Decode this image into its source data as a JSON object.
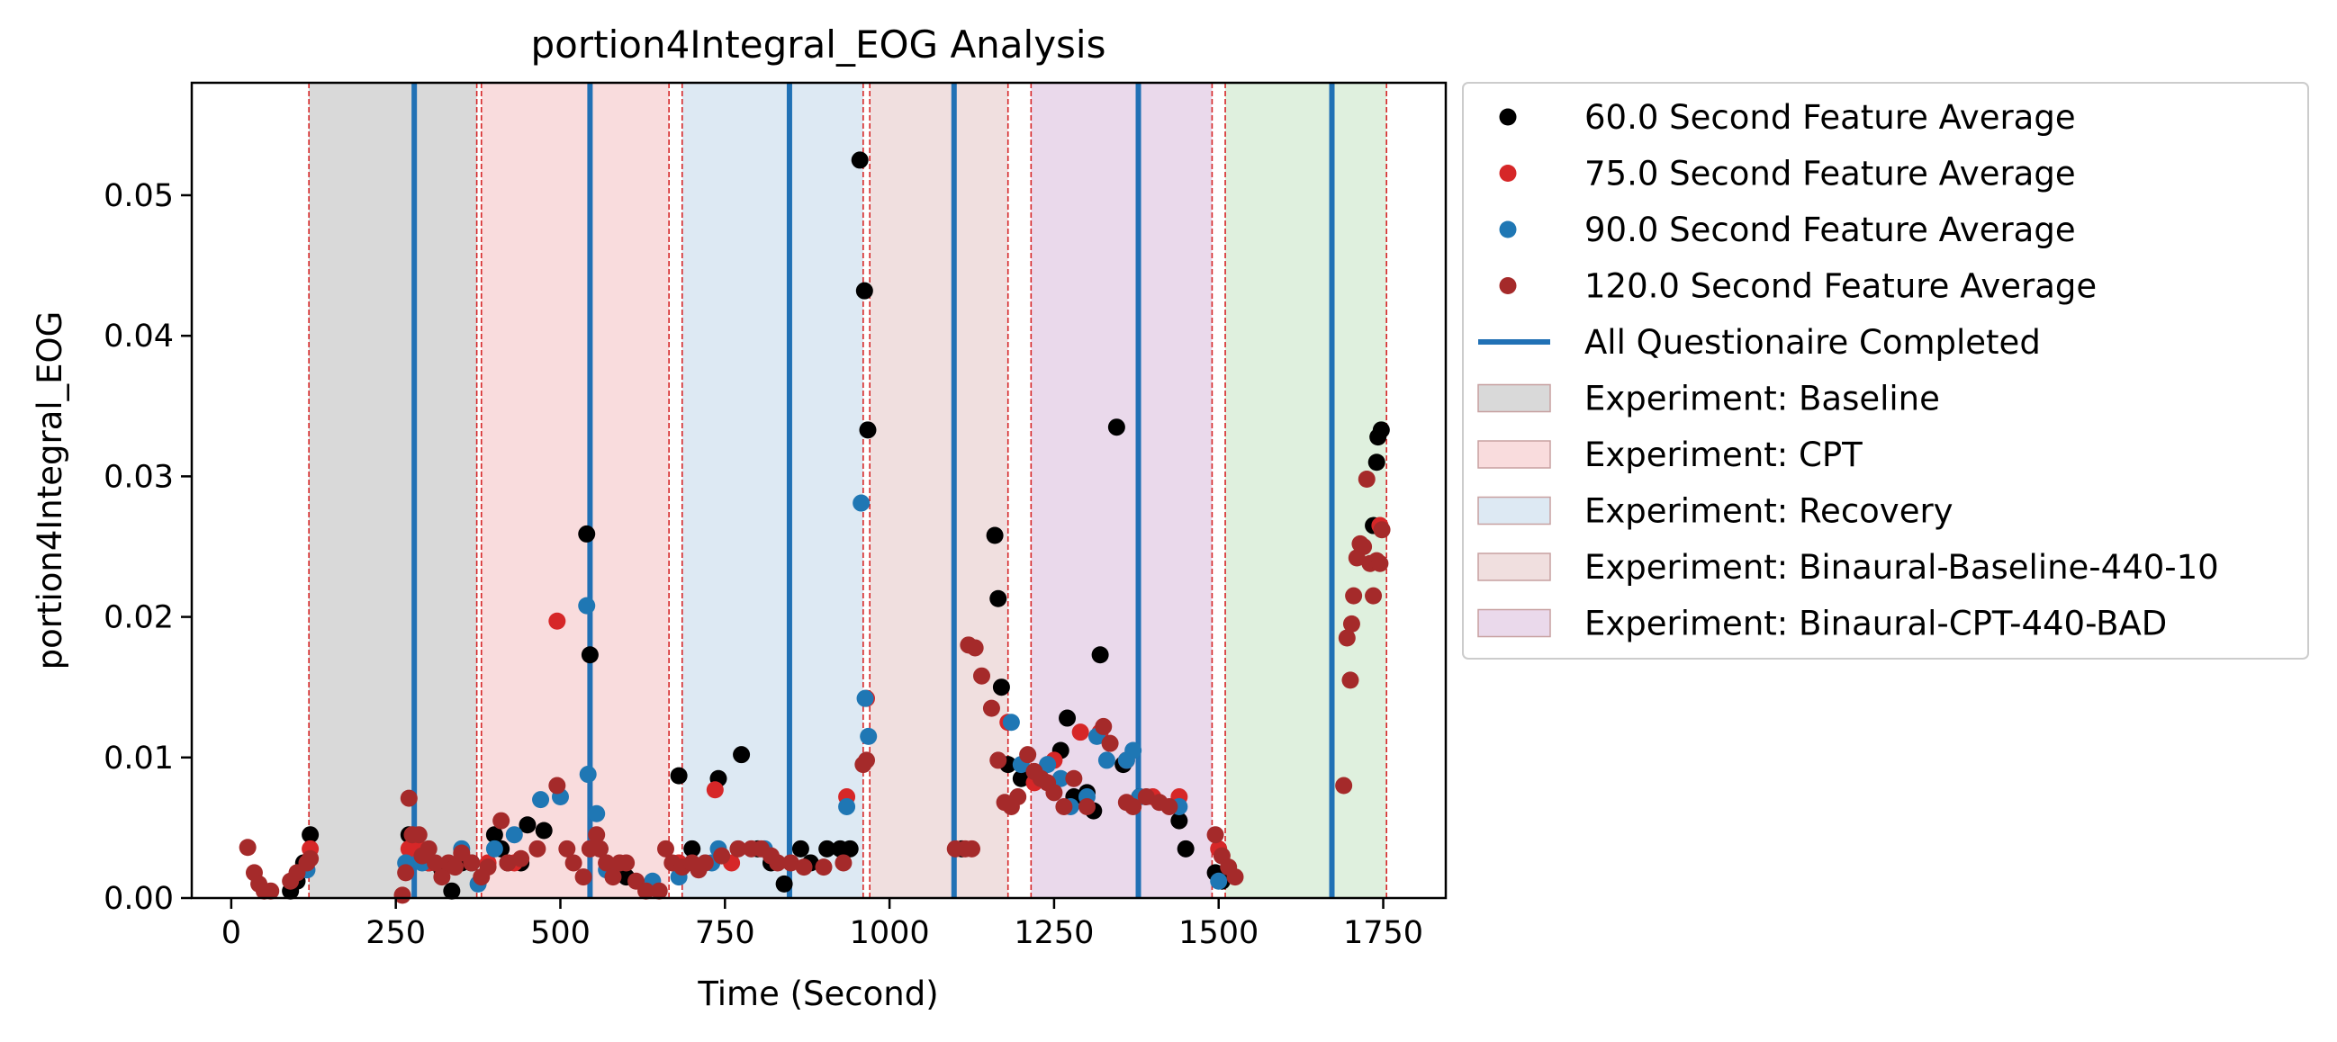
{
  "chart_data": {
    "type": "scatter",
    "title": "portion4Integral_EOG Analysis",
    "xlabel": "Time (Second)",
    "ylabel": "portion4Integral_EOG",
    "xlim": [
      -60,
      1845
    ],
    "ylim": [
      0,
      0.058
    ],
    "x_ticks": [
      0,
      250,
      500,
      750,
      1000,
      1250,
      1500,
      1750
    ],
    "y_ticks": [
      0.0,
      0.01,
      0.02,
      0.03,
      0.04,
      0.05
    ],
    "x_tick_labels": [
      "0",
      "250",
      "500",
      "750",
      "1000",
      "1250",
      "1500",
      "1750"
    ],
    "y_tick_labels": [
      "0.00",
      "0.01",
      "0.02",
      "0.03",
      "0.04",
      "0.05"
    ],
    "grid": false,
    "legend_position": "outside-right",
    "phases": [
      {
        "name": "Experiment: Baseline",
        "start": 118,
        "end": 373,
        "color": "#d9d9d9"
      },
      {
        "name": "Experiment: CPT",
        "start": 380,
        "end": 665,
        "color": "#f9dcdd"
      },
      {
        "name": "Experiment: Recovery",
        "start": 685,
        "end": 960,
        "color": "#dde9f3"
      },
      {
        "name": "Experiment: Binaural-Baseline-440-10",
        "start": 970,
        "end": 1180,
        "color": "#f0dfdf"
      },
      {
        "name": "Experiment: Binaural-CPT-440-BAD",
        "start": 1215,
        "end": 1490,
        "color": "#ead9eb"
      },
      {
        "name": "",
        "start": 1510,
        "end": 1755,
        "color": "#dff0de"
      }
    ],
    "questionnaire_times": [
      278,
      545,
      848,
      1098,
      1378,
      1672
    ],
    "questionnaire_label": "All Questionaire Completed",
    "questionnaire_color": "#2171b5",
    "series": [
      {
        "name": "60.0 Second Feature Average",
        "color": "#000000",
        "points": [
          [
            90,
            0.0005
          ],
          [
            100,
            0.0012
          ],
          [
            110,
            0.0025
          ],
          [
            120,
            0.0045
          ],
          [
            270,
            0.0045
          ],
          [
            285,
            0.0035
          ],
          [
            300,
            0.0025
          ],
          [
            320,
            0.002
          ],
          [
            335,
            0.0005
          ],
          [
            350,
            0.0025
          ],
          [
            365,
            0.0025
          ],
          [
            400,
            0.0045
          ],
          [
            410,
            0.0035
          ],
          [
            420,
            0.0025
          ],
          [
            440,
            0.0025
          ],
          [
            450,
            0.0052
          ],
          [
            475,
            0.0048
          ],
          [
            540,
            0.0259
          ],
          [
            545,
            0.0173
          ],
          [
            560,
            0.0035
          ],
          [
            600,
            0.0015
          ],
          [
            640,
            0.0008
          ],
          [
            680,
            0.0087
          ],
          [
            700,
            0.0035
          ],
          [
            740,
            0.0085
          ],
          [
            775,
            0.0102
          ],
          [
            800,
            0.0035
          ],
          [
            820,
            0.0025
          ],
          [
            840,
            0.001
          ],
          [
            865,
            0.0035
          ],
          [
            880,
            0.0025
          ],
          [
            905,
            0.0035
          ],
          [
            925,
            0.0035
          ],
          [
            940,
            0.0035
          ],
          [
            955,
            0.0525
          ],
          [
            962,
            0.0432
          ],
          [
            967,
            0.0333
          ],
          [
            1110,
            0.0035
          ],
          [
            1160,
            0.0258
          ],
          [
            1165,
            0.0213
          ],
          [
            1170,
            0.015
          ],
          [
            1180,
            0.0095
          ],
          [
            1200,
            0.0085
          ],
          [
            1230,
            0.0085
          ],
          [
            1260,
            0.0105
          ],
          [
            1270,
            0.0128
          ],
          [
            1280,
            0.0072
          ],
          [
            1300,
            0.0075
          ],
          [
            1310,
            0.0062
          ],
          [
            1320,
            0.0173
          ],
          [
            1345,
            0.0335
          ],
          [
            1355,
            0.0095
          ],
          [
            1380,
            0.0072
          ],
          [
            1440,
            0.0055
          ],
          [
            1450,
            0.0035
          ],
          [
            1495,
            0.0018
          ],
          [
            1505,
            0.0012
          ],
          [
            1735,
            0.0265
          ],
          [
            1740,
            0.031
          ],
          [
            1742,
            0.0328
          ],
          [
            1747,
            0.0333
          ]
        ]
      },
      {
        "name": "75.0 Second Feature Average",
        "color": "#d62728",
        "points": [
          [
            120,
            0.0035
          ],
          [
            270,
            0.0035
          ],
          [
            285,
            0.0035
          ],
          [
            300,
            0.0025
          ],
          [
            390,
            0.0025
          ],
          [
            430,
            0.0025
          ],
          [
            495,
            0.0197
          ],
          [
            545,
            0.0035
          ],
          [
            570,
            0.0025
          ],
          [
            680,
            0.0025
          ],
          [
            735,
            0.0077
          ],
          [
            760,
            0.0025
          ],
          [
            935,
            0.0072
          ],
          [
            965,
            0.0142
          ],
          [
            1180,
            0.0125
          ],
          [
            1220,
            0.0082
          ],
          [
            1250,
            0.0098
          ],
          [
            1290,
            0.0118
          ],
          [
            1320,
            0.0118
          ],
          [
            1360,
            0.0098
          ],
          [
            1400,
            0.0072
          ],
          [
            1440,
            0.0072
          ],
          [
            1500,
            0.0035
          ],
          [
            1745,
            0.0265
          ]
        ]
      },
      {
        "name": "90.0 Second Feature Average",
        "color": "#1f77b4",
        "points": [
          [
            115,
            0.002
          ],
          [
            265,
            0.0025
          ],
          [
            290,
            0.0025
          ],
          [
            350,
            0.0035
          ],
          [
            375,
            0.001
          ],
          [
            400,
            0.0035
          ],
          [
            430,
            0.0045
          ],
          [
            470,
            0.007
          ],
          [
            500,
            0.0072
          ],
          [
            540,
            0.0208
          ],
          [
            542,
            0.0088
          ],
          [
            555,
            0.006
          ],
          [
            570,
            0.002
          ],
          [
            640,
            0.0012
          ],
          [
            680,
            0.0015
          ],
          [
            730,
            0.0025
          ],
          [
            740,
            0.0035
          ],
          [
            810,
            0.0035
          ],
          [
            935,
            0.0065
          ],
          [
            957,
            0.0281
          ],
          [
            963,
            0.0142
          ],
          [
            968,
            0.0115
          ],
          [
            1185,
            0.0125
          ],
          [
            1200,
            0.0095
          ],
          [
            1240,
            0.0095
          ],
          [
            1260,
            0.0085
          ],
          [
            1275,
            0.0065
          ],
          [
            1300,
            0.0072
          ],
          [
            1315,
            0.0115
          ],
          [
            1330,
            0.0098
          ],
          [
            1360,
            0.0098
          ],
          [
            1370,
            0.0105
          ],
          [
            1380,
            0.0072
          ],
          [
            1440,
            0.0065
          ],
          [
            1500,
            0.0012
          ]
        ]
      },
      {
        "name": "120.0 Second Feature Average",
        "color": "#a52a2a",
        "points": [
          [
            25,
            0.0036
          ],
          [
            35,
            0.0018
          ],
          [
            42,
            0.001
          ],
          [
            50,
            0.0005
          ],
          [
            60,
            0.0005
          ],
          [
            90,
            0.0012
          ],
          [
            100,
            0.0018
          ],
          [
            115,
            0.0025
          ],
          [
            120,
            0.0028
          ],
          [
            260,
            0.0002
          ],
          [
            265,
            0.0018
          ],
          [
            270,
            0.0071
          ],
          [
            275,
            0.0045
          ],
          [
            285,
            0.0045
          ],
          [
            290,
            0.003
          ],
          [
            300,
            0.0035
          ],
          [
            310,
            0.0025
          ],
          [
            320,
            0.0015
          ],
          [
            330,
            0.0025
          ],
          [
            340,
            0.0022
          ],
          [
            350,
            0.0032
          ],
          [
            365,
            0.0025
          ],
          [
            380,
            0.0015
          ],
          [
            390,
            0.0022
          ],
          [
            410,
            0.0055
          ],
          [
            420,
            0.0025
          ],
          [
            440,
            0.0028
          ],
          [
            465,
            0.0035
          ],
          [
            495,
            0.008
          ],
          [
            510,
            0.0035
          ],
          [
            520,
            0.0025
          ],
          [
            535,
            0.0015
          ],
          [
            545,
            0.0035
          ],
          [
            555,
            0.0045
          ],
          [
            560,
            0.0035
          ],
          [
            570,
            0.0025
          ],
          [
            580,
            0.0015
          ],
          [
            590,
            0.0025
          ],
          [
            600,
            0.0025
          ],
          [
            615,
            0.0012
          ],
          [
            630,
            0.0005
          ],
          [
            650,
            0.0005
          ],
          [
            660,
            0.0035
          ],
          [
            670,
            0.0025
          ],
          [
            685,
            0.0022
          ],
          [
            700,
            0.0025
          ],
          [
            710,
            0.002
          ],
          [
            720,
            0.0025
          ],
          [
            745,
            0.003
          ],
          [
            770,
            0.0035
          ],
          [
            790,
            0.0035
          ],
          [
            805,
            0.0035
          ],
          [
            820,
            0.003
          ],
          [
            830,
            0.0025
          ],
          [
            850,
            0.0025
          ],
          [
            870,
            0.0022
          ],
          [
            900,
            0.0022
          ],
          [
            930,
            0.0025
          ],
          [
            960,
            0.0095
          ],
          [
            965,
            0.0098
          ],
          [
            1100,
            0.0035
          ],
          [
            1115,
            0.0035
          ],
          [
            1125,
            0.0035
          ],
          [
            1120,
            0.018
          ],
          [
            1130,
            0.0178
          ],
          [
            1140,
            0.0158
          ],
          [
            1155,
            0.0135
          ],
          [
            1165,
            0.0098
          ],
          [
            1175,
            0.0068
          ],
          [
            1185,
            0.0065
          ],
          [
            1195,
            0.0072
          ],
          [
            1210,
            0.0102
          ],
          [
            1220,
            0.009
          ],
          [
            1230,
            0.0085
          ],
          [
            1240,
            0.0082
          ],
          [
            1250,
            0.0075
          ],
          [
            1265,
            0.0065
          ],
          [
            1280,
            0.0085
          ],
          [
            1300,
            0.0065
          ],
          [
            1325,
            0.0122
          ],
          [
            1335,
            0.011
          ],
          [
            1360,
            0.0068
          ],
          [
            1370,
            0.0065
          ],
          [
            1390,
            0.0072
          ],
          [
            1410,
            0.0068
          ],
          [
            1425,
            0.0065
          ],
          [
            1495,
            0.0045
          ],
          [
            1505,
            0.003
          ],
          [
            1515,
            0.0022
          ],
          [
            1525,
            0.0015
          ],
          [
            1690,
            0.008
          ],
          [
            1695,
            0.0185
          ],
          [
            1700,
            0.0155
          ],
          [
            1702,
            0.0195
          ],
          [
            1705,
            0.0215
          ],
          [
            1710,
            0.0242
          ],
          [
            1715,
            0.0252
          ],
          [
            1720,
            0.025
          ],
          [
            1725,
            0.0298
          ],
          [
            1730,
            0.0238
          ],
          [
            1735,
            0.0215
          ],
          [
            1740,
            0.024
          ],
          [
            1745,
            0.0238
          ],
          [
            1748,
            0.0262
          ]
        ]
      }
    ]
  }
}
